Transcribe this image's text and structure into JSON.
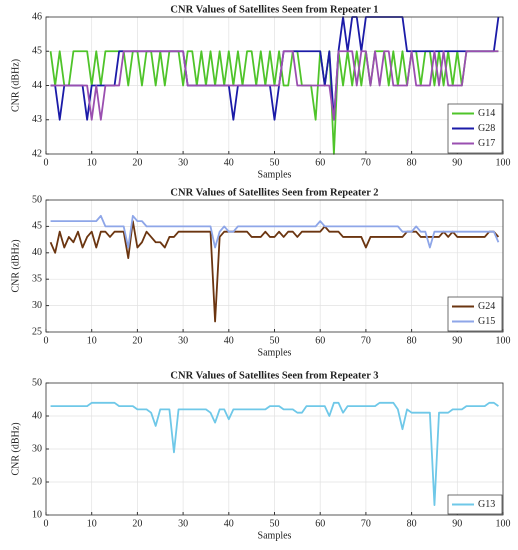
{
  "chart_data": [
    {
      "type": "line",
      "title": "CNR Values of Satellites Seen from Repeater 1",
      "xlabel": "Samples",
      "ylabel": "CNR (dBHz)",
      "x": [
        1,
        2,
        3,
        4,
        5,
        6,
        7,
        8,
        9,
        10,
        11,
        12,
        13,
        14,
        15,
        16,
        17,
        18,
        19,
        20,
        21,
        22,
        23,
        24,
        25,
        26,
        27,
        28,
        29,
        30,
        31,
        32,
        33,
        34,
        35,
        36,
        37,
        38,
        39,
        40,
        41,
        42,
        43,
        44,
        45,
        46,
        47,
        48,
        49,
        50,
        51,
        52,
        53,
        54,
        55,
        56,
        57,
        58,
        59,
        60,
        61,
        62,
        63,
        64,
        65,
        66,
        67,
        68,
        69,
        70,
        71,
        72,
        73,
        74,
        75,
        76,
        77,
        78,
        79,
        80,
        81,
        82,
        83,
        84,
        85,
        86,
        87,
        88,
        89,
        90,
        91,
        92,
        93,
        94,
        95,
        96,
        97,
        98,
        99
      ],
      "xlim": [
        0,
        100
      ],
      "xticks": [
        0,
        10,
        20,
        30,
        40,
        50,
        60,
        70,
        80,
        90,
        100
      ],
      "ylim": [
        42,
        46
      ],
      "yticks": [
        42,
        43,
        44,
        45,
        46
      ],
      "grid": true,
      "legend": "lower-right",
      "series": [
        {
          "name": "G14",
          "color": "#4fc42a",
          "values": [
            45,
            44,
            45,
            44,
            44,
            45,
            45,
            45,
            45,
            44,
            45,
            44,
            45,
            45,
            45,
            45,
            45,
            44,
            45,
            45,
            44,
            45,
            45,
            44,
            45,
            44,
            45,
            45,
            45,
            44,
            45,
            45,
            44,
            45,
            44,
            45,
            44,
            45,
            44,
            45,
            44,
            45,
            44,
            45,
            45,
            44,
            45,
            44,
            45,
            44,
            45,
            44,
            44,
            45,
            45,
            44,
            44,
            44,
            43,
            45,
            44,
            45,
            42,
            45,
            44,
            45,
            44,
            45,
            44,
            45,
            44,
            45,
            45,
            45,
            44,
            45,
            44,
            45,
            44,
            45,
            45,
            44,
            45,
            45,
            44,
            45,
            44,
            45,
            44,
            45,
            44,
            45,
            45,
            45,
            45,
            45,
            45,
            45,
            45
          ]
        },
        {
          "name": "G28",
          "color": "#1b1ba8",
          "values": [
            44,
            44,
            43,
            44,
            44,
            44,
            44,
            44,
            43,
            44,
            44,
            44,
            44,
            44,
            44,
            45,
            45,
            45,
            45,
            45,
            45,
            45,
            45,
            45,
            45,
            45,
            45,
            45,
            45,
            45,
            44,
            44,
            44,
            44,
            44,
            44,
            44,
            44,
            44,
            44,
            43,
            44,
            44,
            44,
            44,
            44,
            44,
            44,
            44,
            43,
            44,
            45,
            45,
            45,
            45,
            45,
            45,
            45,
            45,
            45,
            44,
            45,
            43,
            45,
            46,
            45,
            46,
            46,
            45,
            46,
            46,
            46,
            46,
            46,
            46,
            46,
            46,
            46,
            45,
            45,
            45,
            45,
            45,
            45,
            45,
            45,
            45,
            45,
            45,
            45,
            45,
            45,
            45,
            45,
            45,
            45,
            45,
            45,
            46
          ]
        },
        {
          "name": "G17",
          "color": "#9a4fb0",
          "values": [
            44,
            44,
            44,
            44,
            44,
            44,
            44,
            44,
            44,
            43,
            44,
            43,
            44,
            44,
            44,
            44,
            45,
            45,
            45,
            45,
            45,
            45,
            45,
            45,
            45,
            45,
            45,
            45,
            45,
            45,
            44,
            44,
            44,
            44,
            44,
            44,
            44,
            44,
            44,
            44,
            44,
            44,
            44,
            44,
            44,
            44,
            44,
            44,
            44,
            44,
            44,
            45,
            45,
            45,
            44,
            44,
            44,
            44,
            44,
            44,
            44,
            44,
            43,
            45,
            45,
            45,
            45,
            44,
            45,
            45,
            44,
            45,
            44,
            45,
            45,
            44,
            44,
            44,
            44,
            45,
            44,
            44,
            44,
            44,
            45,
            44,
            45,
            44,
            44,
            44,
            44,
            45,
            45,
            45,
            45,
            45,
            45,
            45,
            45
          ]
        }
      ]
    },
    {
      "type": "line",
      "title": "CNR Values of Satellites Seen from Repeater 2",
      "xlabel": "Samples",
      "ylabel": "CNR (dBHz)",
      "x": [
        1,
        2,
        3,
        4,
        5,
        6,
        7,
        8,
        9,
        10,
        11,
        12,
        13,
        14,
        15,
        16,
        17,
        18,
        19,
        20,
        21,
        22,
        23,
        24,
        25,
        26,
        27,
        28,
        29,
        30,
        31,
        32,
        33,
        34,
        35,
        36,
        37,
        38,
        39,
        40,
        41,
        42,
        43,
        44,
        45,
        46,
        47,
        48,
        49,
        50,
        51,
        52,
        53,
        54,
        55,
        56,
        57,
        58,
        59,
        60,
        61,
        62,
        63,
        64,
        65,
        66,
        67,
        68,
        69,
        70,
        71,
        72,
        73,
        74,
        75,
        76,
        77,
        78,
        79,
        80,
        81,
        82,
        83,
        84,
        85,
        86,
        87,
        88,
        89,
        90,
        91,
        92,
        93,
        94,
        95,
        96,
        97,
        98,
        99
      ],
      "xlim": [
        0,
        100
      ],
      "xticks": [
        0,
        10,
        20,
        30,
        40,
        50,
        60,
        70,
        80,
        90,
        100
      ],
      "ylim": [
        25,
        50
      ],
      "yticks": [
        25,
        30,
        35,
        40,
        45,
        50
      ],
      "grid": true,
      "legend": "lower-right",
      "series": [
        {
          "name": "G24",
          "color": "#6b3510",
          "values": [
            42,
            40,
            44,
            41,
            43,
            42,
            44,
            41,
            43,
            44,
            41,
            44,
            44,
            43,
            44,
            44,
            44,
            39,
            46,
            41,
            42,
            44,
            43,
            42,
            42,
            41,
            43,
            43,
            44,
            44,
            44,
            44,
            44,
            44,
            44,
            44,
            27,
            43,
            44,
            44,
            44,
            44,
            44,
            44,
            43,
            43,
            43,
            44,
            43,
            43,
            44,
            43,
            44,
            44,
            43,
            44,
            44,
            44,
            44,
            44,
            45,
            44,
            44,
            44,
            43,
            43,
            43,
            43,
            43,
            41,
            43,
            43,
            43,
            43,
            43,
            43,
            43,
            43,
            44,
            44,
            44,
            43,
            43,
            43,
            43,
            43,
            44,
            43,
            44,
            43,
            43,
            43,
            43,
            43,
            43,
            43,
            44,
            44,
            43
          ]
        },
        {
          "name": "G15",
          "color": "#8ea6e8",
          "values": [
            46,
            46,
            46,
            46,
            46,
            46,
            46,
            46,
            46,
            46,
            46,
            47,
            45,
            45,
            45,
            45,
            45,
            41,
            47,
            46,
            46,
            45,
            45,
            45,
            45,
            45,
            45,
            45,
            45,
            45,
            45,
            45,
            45,
            45,
            45,
            45,
            41,
            44,
            45,
            44,
            44,
            45,
            45,
            45,
            45,
            45,
            45,
            45,
            45,
            45,
            45,
            45,
            45,
            45,
            45,
            45,
            45,
            45,
            45,
            46,
            45,
            45,
            45,
            45,
            45,
            45,
            45,
            45,
            45,
            45,
            45,
            45,
            45,
            45,
            45,
            45,
            45,
            44,
            44,
            44,
            45,
            44,
            44,
            41,
            44,
            44,
            44,
            44,
            44,
            44,
            44,
            44,
            44,
            44,
            44,
            44,
            44,
            44,
            42
          ]
        }
      ]
    },
    {
      "type": "line",
      "title": "CNR Values of Satellites Seen from Repeater 3",
      "xlabel": "Samples",
      "ylabel": "CNR (dBHz)",
      "x": [
        1,
        2,
        3,
        4,
        5,
        6,
        7,
        8,
        9,
        10,
        11,
        12,
        13,
        14,
        15,
        16,
        17,
        18,
        19,
        20,
        21,
        22,
        23,
        24,
        25,
        26,
        27,
        28,
        29,
        30,
        31,
        32,
        33,
        34,
        35,
        36,
        37,
        38,
        39,
        40,
        41,
        42,
        43,
        44,
        45,
        46,
        47,
        48,
        49,
        50,
        51,
        52,
        53,
        54,
        55,
        56,
        57,
        58,
        59,
        60,
        61,
        62,
        63,
        64,
        65,
        66,
        67,
        68,
        69,
        70,
        71,
        72,
        73,
        74,
        75,
        76,
        77,
        78,
        79,
        80,
        81,
        82,
        83,
        84,
        85,
        86,
        87,
        88,
        89,
        90,
        91,
        92,
        93,
        94,
        95,
        96,
        97,
        98,
        99
      ],
      "xlim": [
        0,
        100
      ],
      "xticks": [
        0,
        10,
        20,
        30,
        40,
        50,
        60,
        70,
        80,
        90,
        100
      ],
      "ylim": [
        10,
        50
      ],
      "yticks": [
        10,
        20,
        30,
        40,
        50
      ],
      "grid": true,
      "legend": "lower-right",
      "series": [
        {
          "name": "G13",
          "color": "#6fc8e8",
          "values": [
            43,
            43,
            43,
            43,
            43,
            43,
            43,
            43,
            43,
            44,
            44,
            44,
            44,
            44,
            44,
            43,
            43,
            43,
            43,
            42,
            42,
            42,
            41,
            37,
            42,
            42,
            42,
            29,
            42,
            42,
            42,
            42,
            42,
            42,
            42,
            41,
            38,
            42,
            42,
            39,
            42,
            42,
            42,
            42,
            42,
            42,
            42,
            42,
            43,
            43,
            43,
            42,
            42,
            42,
            41,
            41,
            43,
            43,
            43,
            43,
            43,
            40,
            44,
            44,
            41,
            43,
            43,
            43,
            43,
            43,
            43,
            43,
            44,
            44,
            44,
            44,
            42,
            36,
            42,
            41,
            41,
            41,
            41,
            41,
            13,
            41,
            41,
            41,
            42,
            42,
            42,
            43,
            43,
            43,
            43,
            43,
            44,
            44,
            43
          ]
        }
      ]
    }
  ]
}
